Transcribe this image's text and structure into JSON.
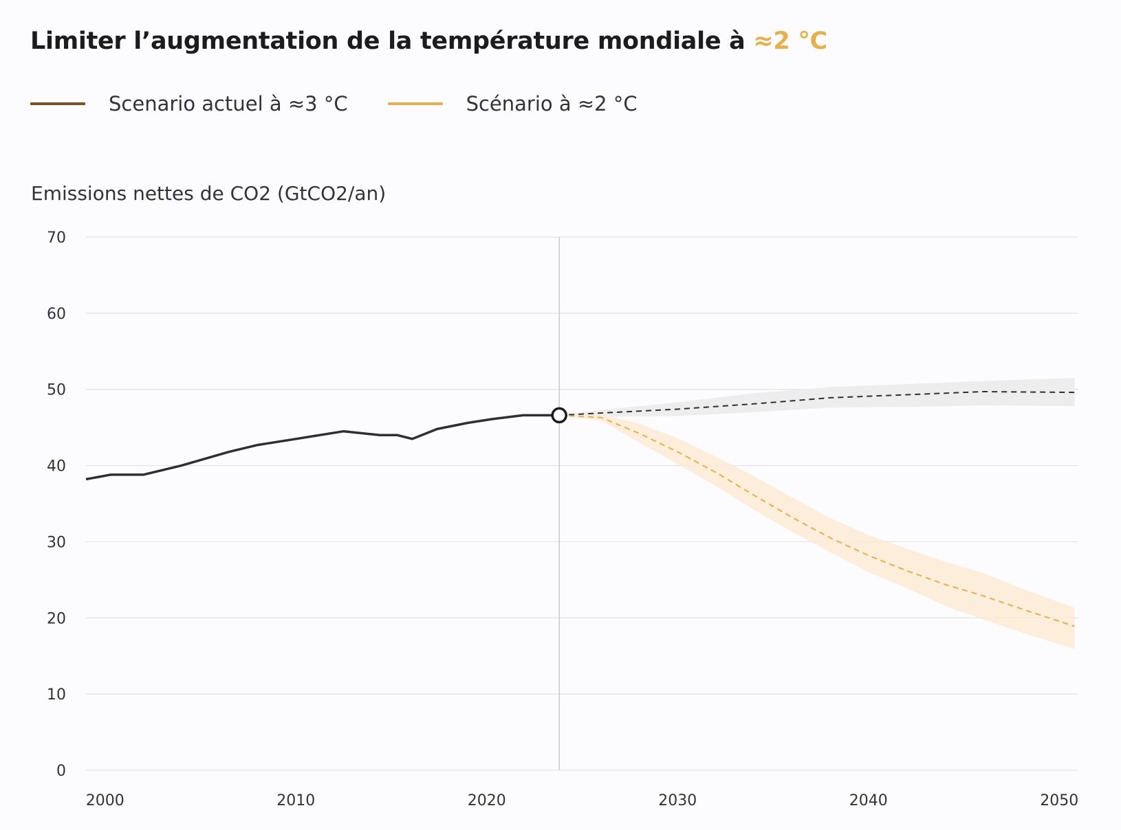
{
  "title": {
    "text": "Limiter l’augmentation de la température mondiale à ",
    "accent": "≈2 °C"
  },
  "colors": {
    "background": "#fcfcfe",
    "history_line": "#2f2f2f",
    "legend_current": "#7a5321",
    "legend_target": "#e9b04a",
    "current_band": "#ededee",
    "target_band": "#fcebd3",
    "target_line": "#e9b04a",
    "grid": "#e2e2e2",
    "divider": "#c9c9c9"
  },
  "legend": [
    {
      "label": "Scenario actuel à ≈3 °C",
      "color": "#7a5321"
    },
    {
      "label": "Scénario à ≈2 °C",
      "color": "#e9b04a"
    }
  ],
  "chart_data": {
    "type": "line",
    "ylabel": "Emissions nettes de CO2 (GtCO2/an)",
    "xlim": [
      1999,
      2051
    ],
    "ylim": [
      0,
      70
    ],
    "x_ticks": [
      2000,
      2010,
      2020,
      2030,
      2040,
      2050
    ],
    "y_ticks": [
      0,
      10,
      20,
      30,
      40,
      50,
      60,
      70
    ],
    "grid": true,
    "divider_x": 2023.8,
    "series": [
      {
        "style": "solid",
        "x": [
          1999,
          2000.3,
          2002,
          2004,
          2006.5,
          2008,
          2010,
          2012.5,
          2014.4,
          2015.3,
          2016.1,
          2017.4,
          2019,
          2020.3,
          2021.9,
          2023.8
        ],
        "y": [
          38.2,
          38.8,
          38.8,
          40,
          41.8,
          42.7,
          43.5,
          44.5,
          44,
          44,
          43.5,
          44.8,
          45.6,
          46.1,
          46.6,
          46.6
        ]
      },
      {
        "style": "dashed",
        "x": [
          2023.8,
          2026,
          2030,
          2034,
          2038,
          2042,
          2046,
          2050.8
        ],
        "y": [
          46.6,
          46.9,
          47.4,
          48.1,
          48.9,
          49.3,
          49.7,
          49.6
        ],
        "band_upper": [
          46.6,
          47.3,
          48.3,
          49.5,
          50.3,
          50.7,
          51.1,
          51.5
        ],
        "band_lower": [
          46.6,
          46.4,
          46.5,
          47,
          47.6,
          47.7,
          47.9,
          47.8
        ]
      },
      {
        "style": "dashed",
        "x": [
          2023.8,
          2026,
          2028,
          2030,
          2032,
          2034,
          2036,
          2038,
          2040,
          2042,
          2044,
          2046,
          2048,
          2050.8
        ],
        "y": [
          46.6,
          46.3,
          44.2,
          41.8,
          39.1,
          36.1,
          33.2,
          30.5,
          28.2,
          26.2,
          24.4,
          22.9,
          21.2,
          18.9
        ],
        "band_upper": [
          46.6,
          46.7,
          45.5,
          43.6,
          41.2,
          38.6,
          35.8,
          33.1,
          30.9,
          29.1,
          27.4,
          25.9,
          23.9,
          21.3
        ],
        "band_lower": [
          46.6,
          45.9,
          43.0,
          40.2,
          37.3,
          34.2,
          31.3,
          28.6,
          26.0,
          23.9,
          21.6,
          19.8,
          18.1,
          15.9
        ]
      }
    ]
  }
}
